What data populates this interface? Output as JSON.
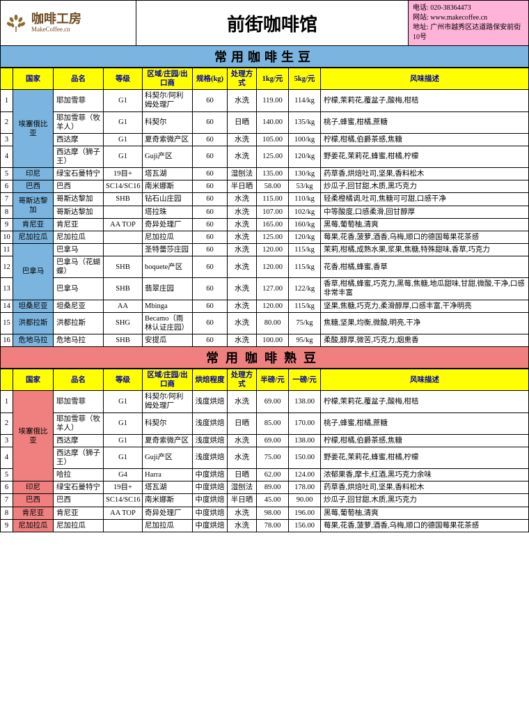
{
  "header": {
    "logo_cn": "咖啡工房",
    "logo_en": "MakeCoffee.cn",
    "title": "前街咖啡馆",
    "contact_phone_label": "电话:",
    "contact_phone": "020-38364473",
    "contact_web_label": "网站:",
    "contact_web": "www.makecoffee.cn",
    "contact_addr_label": "地址:",
    "contact_addr": "广州市越秀区达道路保安前街10号"
  },
  "green": {
    "section_title": "常用咖啡生豆",
    "columns": [
      "",
      "国家",
      "品名",
      "等级",
      "区域/庄园/出口商",
      "规格(kg)",
      "处理方式",
      "1kg/元",
      "5kg/元",
      "风味描述"
    ],
    "groups": [
      {
        "country": "埃塞俄比亚",
        "rows": [
          {
            "idx": 1,
            "name": "耶加雪菲",
            "grade": "G1",
            "region": "科契尔/阿利姆处理厂",
            "spec": "60",
            "process": "水洗",
            "p1": "119.00",
            "p2": "114/kg",
            "flavor": "柠檬,茉莉花,覆盆子,酸梅,柑桔"
          },
          {
            "idx": 2,
            "name": "耶加雪菲（牧羊人）",
            "grade": "G1",
            "region": "科契尔",
            "spec": "60",
            "process": "日晒",
            "p1": "140.00",
            "p2": "135/kg",
            "flavor": "桃子,蜂蜜,柑橘,蔗糖"
          },
          {
            "idx": 3,
            "name": "西达摩",
            "grade": "G1",
            "region": "夏奇索微产区",
            "spec": "60",
            "process": "水洗",
            "p1": "105.00",
            "p2": "100/kg",
            "flavor": "柠檬,柑橘,伯爵茶感,焦糖"
          },
          {
            "idx": 4,
            "name": "西达摩（狮子王）",
            "grade": "G1",
            "region": "Guji产区",
            "spec": "60",
            "process": "水洗",
            "p1": "125.00",
            "p2": "120/kg",
            "flavor": "野姜花,茉莉花,蜂蜜,柑橘,柠檬"
          }
        ]
      },
      {
        "country": "印尼",
        "rows": [
          {
            "idx": 5,
            "name": "绿宝石曼特宁",
            "grade": "19目+",
            "region": "塔瓦湖",
            "spec": "60",
            "process": "湿刨法",
            "p1": "135.00",
            "p2": "130/kg",
            "flavor": "药草香,烘焙吐司,坚果,香料松木"
          }
        ]
      },
      {
        "country": "巴西",
        "rows": [
          {
            "idx": 6,
            "name": "巴西",
            "grade": "SC14/SC16",
            "region": "南米娜斯",
            "spec": "60",
            "process": "半日晒",
            "p1": "58.00",
            "p2": "53/kg",
            "flavor": "炒瓜子,回甘甜,木质,黑巧克力"
          }
        ]
      },
      {
        "country": "哥斯达黎加",
        "rows": [
          {
            "idx": 7,
            "name": "哥斯达黎加",
            "grade": "SHB",
            "region": "钻石山庄园",
            "spec": "60",
            "process": "水洗",
            "p1": "115.00",
            "p2": "110/kg",
            "flavor": "轻柔橙橘调,吐司,焦糖可可甜,口感干净"
          },
          {
            "idx": 8,
            "name": "哥斯达黎加",
            "grade": "",
            "region": "塔拉珠",
            "spec": "60",
            "process": "水洗",
            "p1": "107.00",
            "p2": "102/kg",
            "flavor": "中等酸度,口感柔滑,回甘醇厚"
          }
        ]
      },
      {
        "country": "肯尼亚",
        "rows": [
          {
            "idx": 9,
            "name": "肯尼亚",
            "grade": "AA TOP",
            "region": "奇异处理厂",
            "spec": "60",
            "process": "水洗",
            "p1": "165.00",
            "p2": "160/kg",
            "flavor": "黑莓,葡萄柚,清爽"
          }
        ]
      },
      {
        "country": "尼加拉瓜",
        "rows": [
          {
            "idx": 10,
            "name": "尼加拉瓜",
            "grade": "",
            "region": "尼加拉瓜",
            "spec": "60",
            "process": "水洗",
            "p1": "125.00",
            "p2": "120/kg",
            "flavor": "莓果,花香,菠萝,酒香,乌梅,顺口的德国莓果花茶感"
          }
        ]
      },
      {
        "country": "巴拿马",
        "rows": [
          {
            "idx": 11,
            "name": "巴拿马",
            "grade": "",
            "region": "圣特蕾莎庄园",
            "spec": "60",
            "process": "水洗",
            "p1": "120.00",
            "p2": "115/kg",
            "flavor": "茉莉,柑橘,成熟水果,浆果,焦糖,特殊甜味,香草,巧克力"
          },
          {
            "idx": 12,
            "name": "巴拿马（花蝴蝶）",
            "grade": "SHB",
            "region": "boquete产区",
            "spec": "60",
            "process": "水洗",
            "p1": "120.00",
            "p2": "115/kg",
            "flavor": "花香,柑橘,蜂蜜,香草"
          },
          {
            "idx": 13,
            "name": "巴拿马",
            "grade": "SHB",
            "region": "翡翠庄园",
            "spec": "60",
            "process": "水洗",
            "p1": "127.00",
            "p2": "122/kg",
            "flavor": "香草,柑橘,蜂蜜,巧克力,黑莓,焦糖,地瓜甜味,甘甜,微酸,干净,口感非常丰富"
          }
        ]
      },
      {
        "country": "坦桑尼亚",
        "rows": [
          {
            "idx": 14,
            "name": "坦桑尼亚",
            "grade": "AA",
            "region": "Mbinga",
            "spec": "60",
            "process": "水洗",
            "p1": "120.00",
            "p2": "115/kg",
            "flavor": "坚果,焦糖,巧克力,柔滑醇厚,口感丰富,干净明亮"
          }
        ]
      },
      {
        "country": "洪都拉斯",
        "rows": [
          {
            "idx": 15,
            "name": "洪都拉斯",
            "grade": "SHG",
            "region": "Becamo（雨林认证庄园）",
            "spec": "60",
            "process": "水洗",
            "p1": "80.00",
            "p2": "75/kg",
            "flavor": "焦糖,坚果,均衡,微酸,明亮,干净"
          }
        ]
      },
      {
        "country": "危地马拉",
        "rows": [
          {
            "idx": 16,
            "name": "危地马拉",
            "grade": "SHB",
            "region": "安提瓜",
            "spec": "60",
            "process": "水洗",
            "p1": "100.00",
            "p2": "95/kg",
            "flavor": "柔酸,醇厚,微苦,巧克力,烟熏香"
          }
        ]
      }
    ]
  },
  "roast": {
    "section_title": "常用咖啡熟豆",
    "columns": [
      "",
      "国家",
      "品名",
      "等级",
      "区域/庄园/出口商",
      "烘焙程度",
      "处理方式",
      "半磅/元",
      "一磅/元",
      "风味描述"
    ],
    "groups": [
      {
        "country": "埃塞俄比亚",
        "rows": [
          {
            "idx": 1,
            "name": "耶加雪菲",
            "grade": "G1",
            "region": "科契尔/阿利姆处理厂",
            "spec": "浅度烘焙",
            "process": "水洗",
            "p1": "69.00",
            "p2": "138.00",
            "flavor": "柠檬,茉莉花,覆盆子,酸梅,柑桔"
          },
          {
            "idx": 2,
            "name": "耶加雪菲（牧羊人）",
            "grade": "G1",
            "region": "科契尔",
            "spec": "浅度烘焙",
            "process": "日晒",
            "p1": "85.00",
            "p2": "170.00",
            "flavor": "桃子,蜂蜜,柑橘,蔗糖"
          },
          {
            "idx": 3,
            "name": "西达摩",
            "grade": "G1",
            "region": "夏奇索微产区",
            "spec": "浅度烘焙",
            "process": "水洗",
            "p1": "69.00",
            "p2": "138.00",
            "flavor": "柠檬,柑橘,伯爵茶感,焦糖"
          },
          {
            "idx": 4,
            "name": "西达摩（狮子王）",
            "grade": "G1",
            "region": "Guji产区",
            "spec": "浅度烘焙",
            "process": "水洗",
            "p1": "75.00",
            "p2": "150.00",
            "flavor": "野姜花,茉莉花,蜂蜜,柑橘,柠檬"
          },
          {
            "idx": 5,
            "name": "哈拉",
            "grade": "G4",
            "region": "Harra",
            "spec": "中度烘焙",
            "process": "日晒",
            "p1": "62.00",
            "p2": "124.00",
            "flavor": "浓郁果香,摩卡,红酒,黑巧克力余味"
          }
        ]
      },
      {
        "country": "印尼",
        "rows": [
          {
            "idx": 6,
            "name": "绿宝石曼特宁",
            "grade": "19目+",
            "region": "塔瓦湖",
            "spec": "中度烘焙",
            "process": "湿刨法",
            "p1": "89.00",
            "p2": "178.00",
            "flavor": "药草香,烘焙吐司,坚果,香料松木"
          }
        ]
      },
      {
        "country": "巴西",
        "rows": [
          {
            "idx": 7,
            "name": "巴西",
            "grade": "SC14/SC16",
            "region": "南米娜斯",
            "spec": "中度烘焙",
            "process": "半日晒",
            "p1": "45.00",
            "p2": "90.00",
            "flavor": "炒瓜子,回甘甜,木质,黑巧克力"
          }
        ]
      },
      {
        "country": "肯尼亚",
        "rows": [
          {
            "idx": 8,
            "name": "肯尼亚",
            "grade": "AA TOP",
            "region": "奇异处理厂",
            "spec": "中度烘焙",
            "process": "水洗",
            "p1": "98.00",
            "p2": "196.00",
            "flavor": "黑莓,葡萄柚,清爽"
          }
        ]
      },
      {
        "country": "尼加拉瓜",
        "rows": [
          {
            "idx": 9,
            "name": "尼加拉瓜",
            "grade": "",
            "region": "尼加拉瓜",
            "spec": "中度烘焙",
            "process": "水洗",
            "p1": "78.00",
            "p2": "156.00",
            "flavor": "莓果,花香,菠萝,酒香,乌梅,顺口的德国莓果花茶感"
          }
        ]
      }
    ]
  },
  "colors": {
    "yellow": "#ffff00",
    "blue": "#7bb5df",
    "pink": "#ffb3d9",
    "salmon": "#f08080"
  }
}
